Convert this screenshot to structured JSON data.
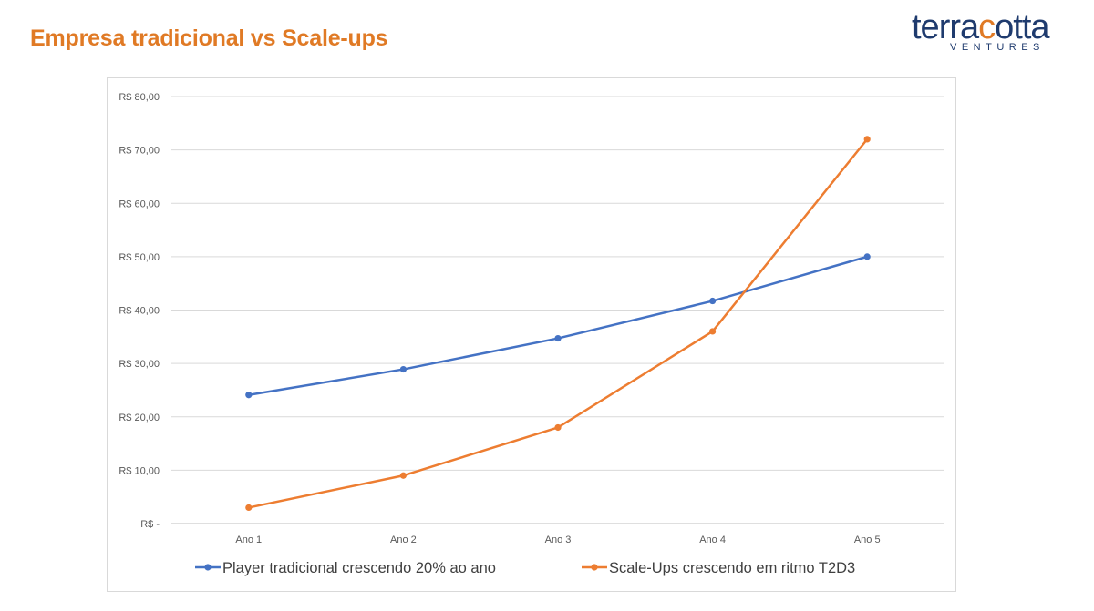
{
  "slide": {
    "title": "Empresa tradicional vs Scale-ups"
  },
  "logo": {
    "word_start": "terra",
    "word_accent": "c",
    "word_end": "otta",
    "sub": "VENTURES",
    "colors": {
      "primary": "#1f3b6e",
      "accent": "#e07a25"
    }
  },
  "chart_data": {
    "type": "line",
    "title": "",
    "xlabel": "",
    "ylabel": "",
    "categories": [
      "Ano 1",
      "Ano 2",
      "Ano 3",
      "Ano 4",
      "Ano 5"
    ],
    "ylim": [
      0,
      80
    ],
    "yticks": [
      0,
      10,
      20,
      30,
      40,
      50,
      60,
      70,
      80
    ],
    "ytick_labels": [
      "R$ -",
      "R$ 10,00",
      "R$ 20,00",
      "R$ 30,00",
      "R$ 40,00",
      "R$ 50,00",
      "R$ 60,00",
      "R$ 70,00",
      "R$ 80,00"
    ],
    "grid": true,
    "legend_position": "bottom",
    "series": [
      {
        "name": "Player tradicional crescendo 20% ao ano",
        "color": "#4472c4",
        "values": [
          24.1,
          28.9,
          34.7,
          41.7,
          50.0
        ]
      },
      {
        "name": "Scale-Ups crescendo em ritmo T2D3",
        "color": "#ed7d31",
        "values": [
          3.0,
          9.0,
          18.0,
          36.0,
          72.0
        ]
      }
    ]
  }
}
